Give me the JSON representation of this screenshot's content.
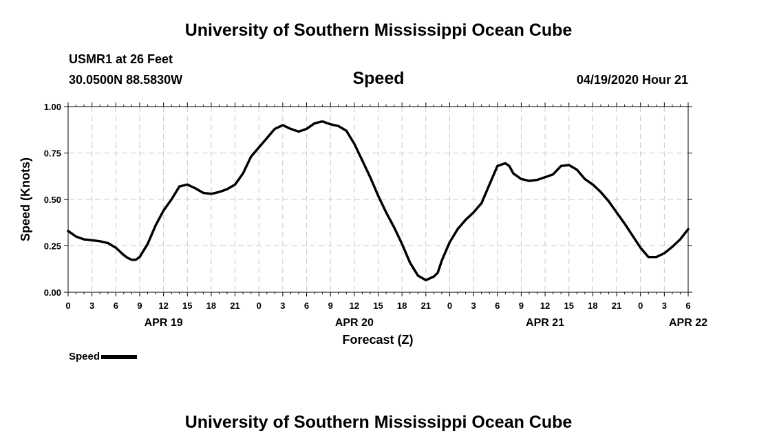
{
  "header": {
    "title": "University of Southern Mississippi Ocean Cube",
    "station": "USMR1 at 26 Feet",
    "coordinates": "30.0500N 88.5830W",
    "variable": "Speed",
    "datetime": "04/19/2020 Hour 21"
  },
  "footer": {
    "title": "University of Southern Mississippi Ocean Cube"
  },
  "legend": {
    "label": "Speed"
  },
  "chart_data": {
    "type": "line",
    "title": "Speed",
    "xlabel": "Forecast (Z)",
    "ylabel": "Speed (Knots)",
    "xlim": [
      0,
      78
    ],
    "ylim": [
      0,
      1.0
    ],
    "grid": true,
    "legend_position": "bottom-left",
    "y_ticks": [
      "0.00",
      "0.25",
      "0.50",
      "0.75",
      "1.00"
    ],
    "y_tick_values": [
      0,
      0.25,
      0.5,
      0.75,
      1.0
    ],
    "x_tick_hours": [
      0,
      3,
      6,
      9,
      12,
      15,
      18,
      21,
      24,
      27,
      30,
      33,
      36,
      39,
      42,
      45,
      48,
      51,
      54,
      57,
      60,
      63,
      66,
      69,
      72,
      75,
      78
    ],
    "x_tick_labels": [
      "0",
      "3",
      "6",
      "9",
      "12",
      "15",
      "18",
      "21",
      "0",
      "3",
      "6",
      "9",
      "12",
      "15",
      "18",
      "21",
      "0",
      "3",
      "6",
      "9",
      "12",
      "15",
      "18",
      "21",
      "0",
      "3",
      "6"
    ],
    "date_labels": [
      {
        "hour": 12,
        "label": "APR 19"
      },
      {
        "hour": 36,
        "label": "APR 20"
      },
      {
        "hour": 60,
        "label": "APR 21"
      },
      {
        "hour": 78,
        "label": "APR 22"
      }
    ],
    "series": [
      {
        "name": "Speed",
        "color": "#000000",
        "x": [
          0,
          1,
          2,
          3,
          4,
          5,
          6,
          7,
          7.5,
          8,
          8.5,
          9,
          10,
          11,
          12,
          13,
          14,
          15,
          16,
          17,
          18,
          19,
          20,
          21,
          22,
          23,
          24,
          25,
          26,
          27,
          28,
          29,
          30,
          31,
          32,
          33,
          34,
          35,
          36,
          37,
          38,
          39,
          40,
          41,
          42,
          43,
          44,
          45,
          46,
          46.5,
          47,
          48,
          49,
          50,
          51,
          52,
          53,
          54,
          55,
          55.5,
          56,
          57,
          58,
          59,
          60,
          61,
          62,
          63,
          64,
          65,
          66,
          67,
          68,
          69,
          70,
          71,
          72,
          73,
          74,
          75,
          76,
          77,
          78
        ],
        "values": [
          0.33,
          0.3,
          0.285,
          0.28,
          0.275,
          0.265,
          0.24,
          0.2,
          0.185,
          0.175,
          0.175,
          0.19,
          0.26,
          0.36,
          0.44,
          0.5,
          0.57,
          0.58,
          0.56,
          0.535,
          0.53,
          0.54,
          0.555,
          0.58,
          0.64,
          0.73,
          0.78,
          0.83,
          0.88,
          0.9,
          0.88,
          0.865,
          0.88,
          0.91,
          0.92,
          0.905,
          0.895,
          0.87,
          0.8,
          0.71,
          0.62,
          0.52,
          0.43,
          0.35,
          0.26,
          0.16,
          0.09,
          0.065,
          0.085,
          0.105,
          0.17,
          0.27,
          0.34,
          0.39,
          0.43,
          0.48,
          0.58,
          0.68,
          0.695,
          0.68,
          0.64,
          0.61,
          0.6,
          0.605,
          0.62,
          0.635,
          0.68,
          0.685,
          0.66,
          0.61,
          0.58,
          0.54,
          0.49,
          0.43,
          0.37,
          0.305,
          0.24,
          0.19,
          0.19,
          0.21,
          0.245,
          0.285,
          0.34
        ]
      }
    ]
  }
}
